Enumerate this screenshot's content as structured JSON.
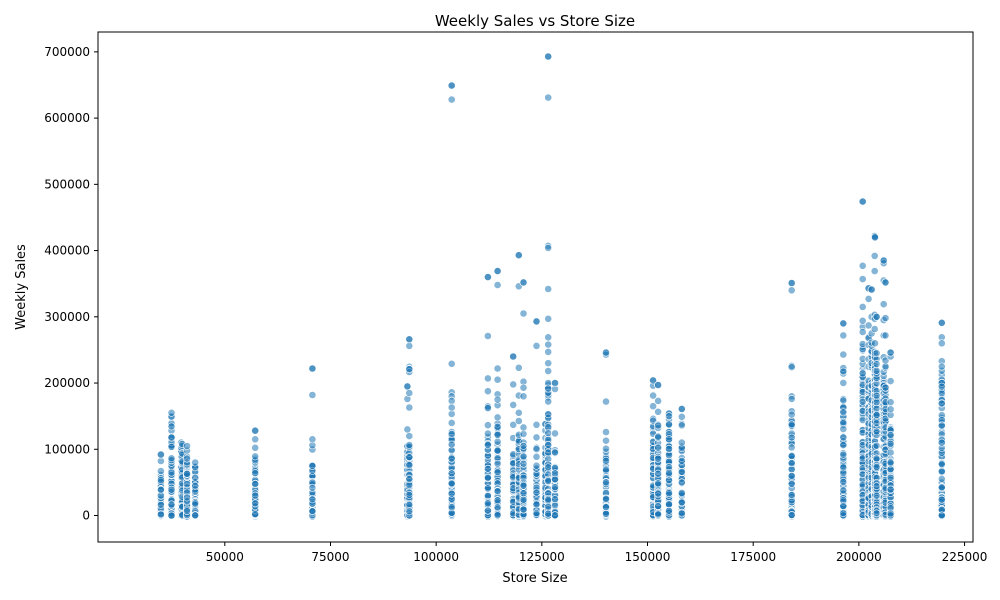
{
  "chart_data": {
    "type": "scatter",
    "title": "Weekly Sales vs Store Size",
    "xlabel": "Store Size",
    "ylabel": "Weekly Sales",
    "xlim": [
      20000,
      227000
    ],
    "ylim": [
      -40000,
      730000
    ],
    "xticks": [
      50000,
      75000,
      100000,
      125000,
      150000,
      175000,
      200000,
      225000
    ],
    "yticks": [
      0,
      100000,
      200000,
      300000,
      400000,
      500000,
      600000,
      700000
    ],
    "xtick_labels": [
      "50000",
      "75000",
      "100000",
      "125000",
      "150000",
      "175000",
      "200000",
      "225000"
    ],
    "ytick_labels": [
      "0",
      "100000",
      "200000",
      "300000",
      "400000",
      "500000",
      "600000",
      "700000"
    ],
    "grid": false,
    "marker_color": "#1f77b4",
    "marker_alpha": 0.55,
    "stores": [
      {
        "size": 34875,
        "max": 92000,
        "dense_to": 70000,
        "outliers": [
          92000
        ]
      },
      {
        "size": 37392,
        "max": 155000,
        "dense_to": 150000,
        "outliers": []
      },
      {
        "size": 39690,
        "max": 110000,
        "dense_to": 100000,
        "outliers": []
      },
      {
        "size": 39910,
        "max": 108000,
        "dense_to": 95000,
        "outliers": []
      },
      {
        "size": 41062,
        "max": 105000,
        "dense_to": 90000,
        "outliers": []
      },
      {
        "size": 42988,
        "max": 80000,
        "dense_to": 75000,
        "outliers": []
      },
      {
        "size": 57197,
        "max": 128000,
        "dense_to": 95000,
        "outliers": [
          128000,
          115000
        ]
      },
      {
        "size": 70713,
        "max": 222000,
        "dense_to": 80000,
        "outliers": [
          222000,
          182000,
          115000
        ]
      },
      {
        "size": 93188,
        "max": 195000,
        "dense_to": 100000,
        "outliers": [
          195000,
          176000,
          130000
        ]
      },
      {
        "size": 93638,
        "max": 266000,
        "dense_to": 105000,
        "outliers": [
          266000,
          256000
        ]
      },
      {
        "size": 103681,
        "max": 649000,
        "dense_to": 130000,
        "outliers": [
          649000,
          628000,
          229000,
          186000,
          180000,
          173000,
          163000
        ]
      },
      {
        "size": 112238,
        "max": 360000,
        "dense_to": 130000,
        "outliers": [
          360000,
          271000,
          207000
        ]
      },
      {
        "size": 114533,
        "max": 369000,
        "dense_to": 160000,
        "outliers": [
          369000,
          348000,
          222000,
          205000,
          183000,
          175000
        ]
      },
      {
        "size": 118221,
        "max": 240000,
        "dense_to": 90000,
        "outliers": [
          240000,
          198000,
          167000,
          137000,
          117000
        ]
      },
      {
        "size": 119557,
        "max": 393000,
        "dense_to": 120000,
        "outliers": [
          393000,
          346000,
          223000,
          181000,
          155000
        ]
      },
      {
        "size": 120653,
        "max": 352000,
        "dense_to": 115000,
        "outliers": [
          352000,
          305000,
          202000,
          193000,
          180000,
          133000
        ]
      },
      {
        "size": 123737,
        "max": 293000,
        "dense_to": 80000,
        "outliers": [
          293000,
          256000,
          137000,
          118000
        ]
      },
      {
        "size": 125833,
        "max": 138000,
        "dense_to": 100000,
        "outliers": [
          138000
        ]
      },
      {
        "size": 126512,
        "max": 693000,
        "dense_to": 210000,
        "outliers": [
          693000,
          631000,
          407000,
          404000,
          342000,
          297000,
          269000,
          258000,
          247000,
          230000
        ]
      },
      {
        "size": 128107,
        "max": 200000,
        "dense_to": 80000,
        "outliers": [
          200000,
          191000,
          124000
        ]
      },
      {
        "size": 140167,
        "max": 246000,
        "dense_to": 90000,
        "outliers": [
          246000,
          243000,
          172000,
          126000,
          113000
        ]
      },
      {
        "size": 151315,
        "max": 204000,
        "dense_to": 135000,
        "outliers": [
          204000,
          196000,
          181000,
          165000
        ]
      },
      {
        "size": 152513,
        "max": 197000,
        "dense_to": 120000,
        "outliers": [
          197000,
          173000
        ]
      },
      {
        "size": 155078,
        "max": 154000,
        "dense_to": 130000,
        "outliers": [
          154000
        ]
      },
      {
        "size": 155083,
        "max": 150000,
        "dense_to": 125000,
        "outliers": []
      },
      {
        "size": 158114,
        "max": 161000,
        "dense_to": 110000,
        "outliers": [
          161000,
          149000
        ]
      },
      {
        "size": 184109,
        "max": 351000,
        "dense_to": 150000,
        "outliers": [
          351000,
          340000,
          226000,
          224000,
          180000,
          176000
        ]
      },
      {
        "size": 196321,
        "max": 290000,
        "dense_to": 180000,
        "outliers": [
          290000,
          272000
        ]
      },
      {
        "size": 200898,
        "max": 474000,
        "dense_to": 260000,
        "outliers": [
          474000,
          377000,
          357000,
          315000,
          294000
        ]
      },
      {
        "size": 202307,
        "max": 343000,
        "dense_to": 240000,
        "outliers": [
          343000,
          327000,
          287000
        ]
      },
      {
        "size": 203007,
        "max": 341000,
        "dense_to": 250000,
        "outliers": [
          341000,
          300000,
          275000,
          261000
        ]
      },
      {
        "size": 203742,
        "max": 422000,
        "dense_to": 230000,
        "outliers": [
          422000,
          392000,
          369000,
          303000,
          297000
        ]
      },
      {
        "size": 203819,
        "max": 420000,
        "dense_to": 230000,
        "outliers": [
          420000,
          260000
        ]
      },
      {
        "size": 204184,
        "max": 300000,
        "dense_to": 220000,
        "outliers": [
          300000,
          245000
        ]
      },
      {
        "size": 205863,
        "max": 385000,
        "dense_to": 205000,
        "outliers": [
          385000,
          381000,
          355000,
          319000,
          295000,
          272000,
          239000,
          217000
        ]
      },
      {
        "size": 206302,
        "max": 352000,
        "dense_to": 200000,
        "outliers": [
          352000,
          298000,
          272000,
          234000
        ]
      },
      {
        "size": 207499,
        "max": 246000,
        "dense_to": 140000,
        "outliers": [
          246000,
          240000,
          203000,
          171000
        ]
      },
      {
        "size": 219622,
        "max": 291000,
        "dense_to": 215000,
        "outliers": [
          291000,
          269000,
          260000,
          233000,
          225000
        ]
      }
    ]
  }
}
